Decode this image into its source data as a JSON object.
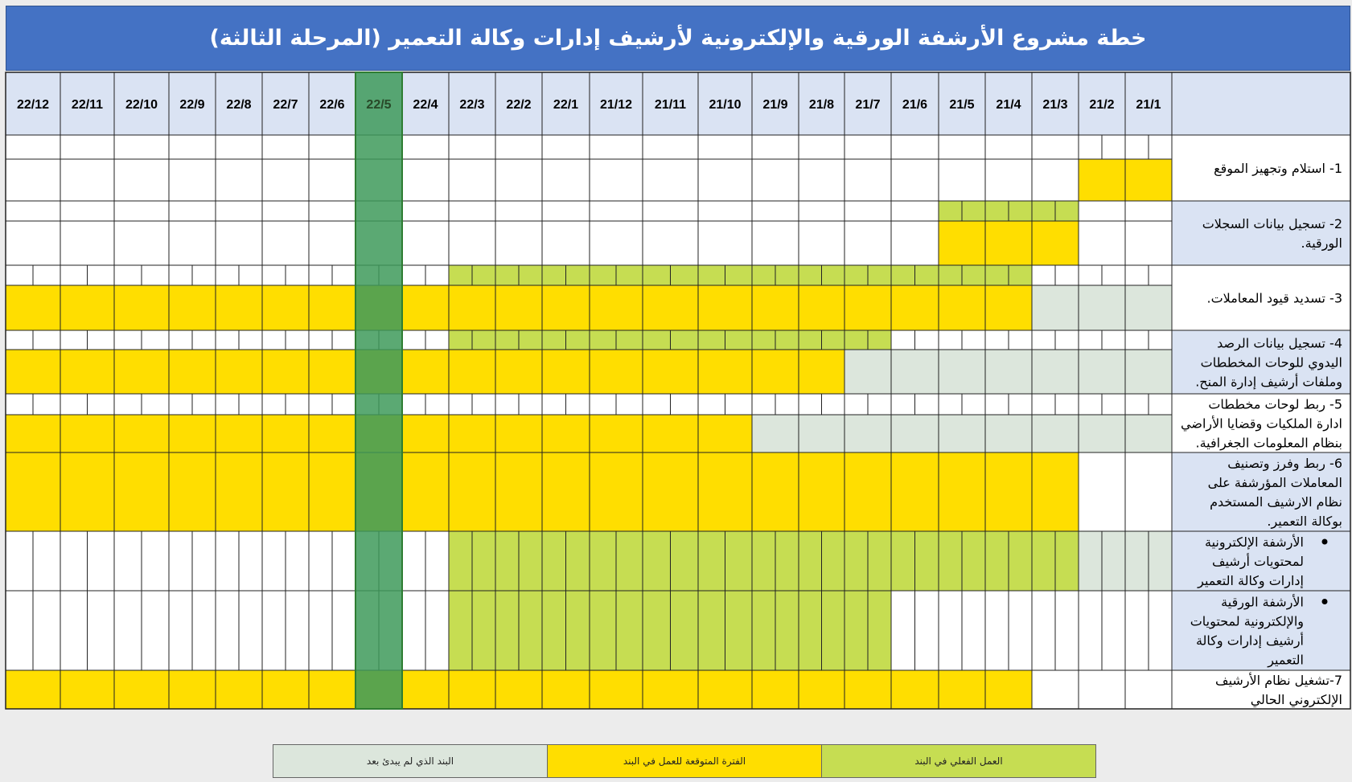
{
  "title": "خطة مشروع الأرشفة الورقية والإلكترونية لأرشيف إدارات وكالة التعمير (المرحلة الثالثة)",
  "colors": {
    "header": "#4472c4",
    "month_header_bg": "#dae3f3",
    "label_bg_blue": "#dae3f3",
    "actual": "#c6dd52",
    "expected": "#ffde00",
    "not_started": "#dce6dc",
    "current_month": "#3e9a5a"
  },
  "legend": [
    {
      "key": "not_started",
      "label": "البند الذي لم يبدئ بعد"
    },
    {
      "key": "expected",
      "label": "الفترة المتوقعة للعمل في البند"
    },
    {
      "key": "actual",
      "label": "العمل الفعلي في البند"
    }
  ],
  "chart_data": {
    "type": "gantt",
    "months": [
      "21/1",
      "21/2",
      "21/3",
      "21/4",
      "21/5",
      "21/6",
      "21/7",
      "21/8",
      "21/9",
      "21/10",
      "21/11",
      "21/12",
      "22/1",
      "22/2",
      "22/3",
      "22/4",
      "22/5",
      "22/6",
      "22/7",
      "22/8",
      "22/9",
      "22/10",
      "22/11",
      "22/12"
    ],
    "current_month": "22/5",
    "tasks": [
      {
        "label": [
          "1- استلام وتجهيز الموقع"
        ],
        "actual": null,
        "expected": [
          "21/1",
          "21/2"
        ],
        "not_started": null
      },
      {
        "label": [
          "2- تسجيل بيانات السجلات",
          "الورقية."
        ],
        "actual": [
          "21/3",
          "21/5"
        ],
        "expected": [
          "21/3",
          "21/5"
        ],
        "not_started": null
      },
      {
        "label": [
          "3- تسديد قيود المعاملات."
        ],
        "actual": [
          "21/4",
          "22/3"
        ],
        "expected": [
          "21/4",
          "22/12"
        ],
        "not_started": [
          "21/1",
          "21/3"
        ]
      },
      {
        "label": [
          "4- تسجيل بيانات الرصد",
          "اليدوي للوحات المخططات",
          "وملفات أرشيف إدارة المنح."
        ],
        "actual": [
          "21/7",
          "22/3"
        ],
        "expected": [
          "21/8",
          "22/12"
        ],
        "not_started": [
          "21/1",
          "21/7"
        ]
      },
      {
        "label": [
          "5- ربط لوحات مخططات",
          "ادارة الملكيات وقضايا الأراضي",
          "بنظام المعلومات الجغرافية."
        ],
        "actual": null,
        "expected": [
          "21/10",
          "22/12"
        ],
        "not_started": [
          "21/1",
          "21/9"
        ]
      },
      {
        "label": [
          "6- ربط وفرز وتصنيف",
          "المعاملات المؤرشفة على",
          "نظام الارشيف المستخدم",
          "بوكالة التعمير."
        ],
        "actual": null,
        "expected": [
          "21/3",
          "22/12"
        ],
        "not_started": null
      },
      {
        "label": [
          "الأرشفة الإلكترونية",
          "لمحتويات أرشيف",
          "إدارات وكالة التعمير"
        ],
        "bullet": true,
        "actual": [
          "21/3",
          "22/3"
        ],
        "expected": null,
        "not_started": [
          "21/1",
          "21/2"
        ]
      },
      {
        "label": [
          "الأرشفة الورقية",
          "والإلكترونية لمحتويات",
          "أرشيف إدارات وكالة",
          "التعمير"
        ],
        "bullet": true,
        "actual": [
          "21/7",
          "22/3"
        ],
        "expected": null,
        "not_started": null
      },
      {
        "label": [
          "7-تشغيل نظام الأرشيف",
          "الإلكتروني الحالي"
        ],
        "actual": null,
        "expected": [
          "21/4",
          "22/12"
        ],
        "not_started": null
      }
    ]
  }
}
